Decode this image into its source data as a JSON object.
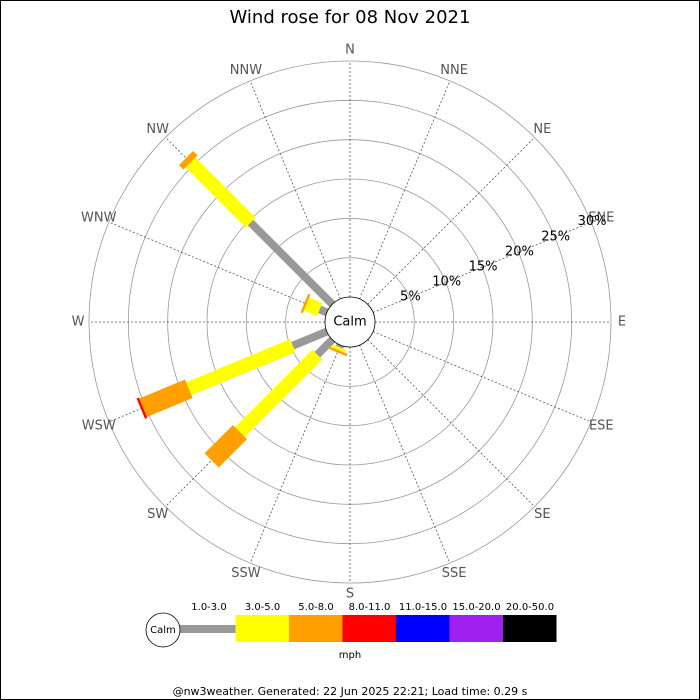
{
  "chart_data": {
    "type": "windrose",
    "title": "Wind rose for 08 Nov 2021",
    "directions": [
      "N",
      "NNE",
      "NE",
      "ENE",
      "E",
      "ESE",
      "SE",
      "SSE",
      "S",
      "SSW",
      "SW",
      "WSW",
      "W",
      "WNW",
      "NW",
      "NNW"
    ],
    "calm_label": "Calm",
    "rlim": [
      0,
      30
    ],
    "rticks": [
      {
        "value": 5,
        "label": "5%"
      },
      {
        "value": 10,
        "label": "10%"
      },
      {
        "value": 15,
        "label": "15%"
      },
      {
        "value": 20,
        "label": "20%"
      },
      {
        "value": 25,
        "label": "25%"
      },
      {
        "value": 30,
        "label": "30%"
      }
    ],
    "series": [
      {
        "name": "1.0-3.0",
        "color": "#999999",
        "values": [
          0,
          0,
          0,
          0,
          0,
          0,
          0,
          0,
          0,
          0.3,
          2.7,
          4.7,
          0,
          1.0,
          14.7,
          0
        ]
      },
      {
        "name": "3.0-5.0",
        "color": "#ffff00",
        "values": [
          0,
          0,
          0,
          0,
          0,
          0,
          0,
          0,
          0,
          0.4,
          13.9,
          14.3,
          0,
          1.8,
          10.8,
          0
        ]
      },
      {
        "name": "5.0-8.0",
        "color": "#ffa000",
        "values": [
          0,
          0,
          0,
          0,
          0,
          0,
          0,
          0,
          0,
          0.3,
          5.1,
          6.3,
          0,
          0.3,
          0.8,
          0
        ]
      },
      {
        "name": "8.0-11.0",
        "color": "#ff0000",
        "values": [
          0,
          0,
          0,
          0,
          0,
          0,
          0,
          0,
          0,
          0,
          0,
          0.3,
          0,
          0,
          0,
          0
        ]
      },
      {
        "name": "11.0-15.0",
        "color": "#0000ff",
        "values": [
          0,
          0,
          0,
          0,
          0,
          0,
          0,
          0,
          0,
          0,
          0,
          0,
          0,
          0,
          0,
          0
        ]
      },
      {
        "name": "15.0-20.0",
        "color": "#a020f0",
        "values": [
          0,
          0,
          0,
          0,
          0,
          0,
          0,
          0,
          0,
          0,
          0,
          0,
          0,
          0,
          0,
          0
        ]
      },
      {
        "name": "20.0-50.0",
        "color": "#000000",
        "values": [
          0,
          0,
          0,
          0,
          0,
          0,
          0,
          0,
          0,
          0,
          0,
          0,
          0,
          0,
          0,
          0
        ]
      }
    ],
    "legend_unit": "mph",
    "footer": "@nw3weather. Generated: 22 Jun 2025 22:21; Load time: 0.29 s"
  }
}
